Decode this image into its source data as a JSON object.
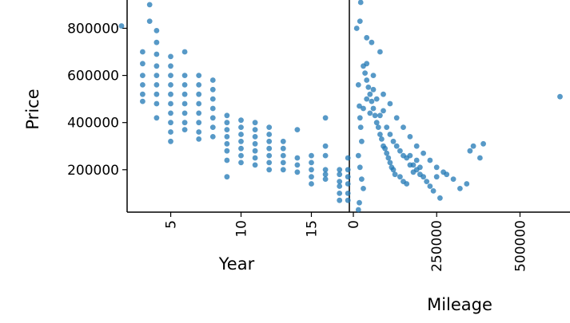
{
  "chart_data": {
    "type": "scatter",
    "panels": [
      {
        "name": "year-vs-price",
        "xlabel": "Year",
        "ylabel": "Price",
        "xticks": [
          5,
          10,
          15
        ],
        "yticks": [
          200000,
          400000,
          600000,
          800000
        ],
        "xlim": [
          1.9,
          17.7
        ],
        "ylim": [
          20000,
          920000
        ],
        "color": "#1f77b4",
        "points": [
          [
            1.5,
            810000
          ],
          [
            3.5,
            900000
          ],
          [
            3.5,
            830000
          ],
          [
            3,
            700000
          ],
          [
            3,
            650000
          ],
          [
            3,
            600000
          ],
          [
            3,
            560000
          ],
          [
            3,
            520000
          ],
          [
            3,
            490000
          ],
          [
            4,
            790000
          ],
          [
            4,
            740000
          ],
          [
            4,
            690000
          ],
          [
            4,
            640000
          ],
          [
            4,
            600000
          ],
          [
            4,
            560000
          ],
          [
            4,
            520000
          ],
          [
            4,
            480000
          ],
          [
            4,
            420000
          ],
          [
            5,
            680000
          ],
          [
            5,
            640000
          ],
          [
            5,
            600000
          ],
          [
            5,
            560000
          ],
          [
            5,
            520000
          ],
          [
            5,
            480000
          ],
          [
            5,
            440000
          ],
          [
            5,
            400000
          ],
          [
            5,
            360000
          ],
          [
            5,
            320000
          ],
          [
            6,
            700000
          ],
          [
            6,
            600000
          ],
          [
            6,
            560000
          ],
          [
            6,
            520000
          ],
          [
            6,
            480000
          ],
          [
            6,
            440000
          ],
          [
            6,
            400000
          ],
          [
            6,
            370000
          ],
          [
            7,
            600000
          ],
          [
            7,
            560000
          ],
          [
            7,
            520000
          ],
          [
            7,
            480000
          ],
          [
            7,
            440000
          ],
          [
            7,
            400000
          ],
          [
            7,
            360000
          ],
          [
            7,
            330000
          ],
          [
            8,
            580000
          ],
          [
            8,
            540000
          ],
          [
            8,
            500000
          ],
          [
            8,
            460000
          ],
          [
            8,
            420000
          ],
          [
            8,
            380000
          ],
          [
            8,
            340000
          ],
          [
            9,
            430000
          ],
          [
            9,
            400000
          ],
          [
            9,
            370000
          ],
          [
            9,
            340000
          ],
          [
            9,
            310000
          ],
          [
            9,
            280000
          ],
          [
            9,
            240000
          ],
          [
            9,
            170000
          ],
          [
            10,
            410000
          ],
          [
            10,
            380000
          ],
          [
            10,
            350000
          ],
          [
            10,
            320000
          ],
          [
            10,
            290000
          ],
          [
            10,
            260000
          ],
          [
            10,
            230000
          ],
          [
            11,
            400000
          ],
          [
            11,
            370000
          ],
          [
            11,
            340000
          ],
          [
            11,
            310000
          ],
          [
            11,
            280000
          ],
          [
            11,
            250000
          ],
          [
            11,
            220000
          ],
          [
            12,
            380000
          ],
          [
            12,
            350000
          ],
          [
            12,
            320000
          ],
          [
            12,
            290000
          ],
          [
            12,
            260000
          ],
          [
            12,
            230000
          ],
          [
            12,
            200000
          ],
          [
            13,
            320000
          ],
          [
            13,
            290000
          ],
          [
            13,
            260000
          ],
          [
            13,
            230000
          ],
          [
            13,
            200000
          ],
          [
            14,
            370000
          ],
          [
            14,
            250000
          ],
          [
            14,
            220000
          ],
          [
            14,
            190000
          ],
          [
            15,
            260000
          ],
          [
            15,
            230000
          ],
          [
            15,
            200000
          ],
          [
            15,
            170000
          ],
          [
            15,
            140000
          ],
          [
            16,
            420000
          ],
          [
            16,
            300000
          ],
          [
            16,
            260000
          ],
          [
            16,
            200000
          ],
          [
            16,
            180000
          ],
          [
            16,
            160000
          ],
          [
            17,
            200000
          ],
          [
            17,
            180000
          ],
          [
            17,
            150000
          ],
          [
            17,
            130000
          ],
          [
            17,
            100000
          ],
          [
            17,
            70000
          ],
          [
            17.6,
            250000
          ],
          [
            17.6,
            200000
          ],
          [
            17.6,
            170000
          ],
          [
            17.6,
            140000
          ],
          [
            17.6,
            100000
          ],
          [
            17.6,
            70000
          ]
        ]
      },
      {
        "name": "mileage-vs-price",
        "xlabel": "Mileage",
        "ylabel": "",
        "xticks": [
          0,
          250000,
          500000
        ],
        "yticks": [],
        "xlim": [
          -12000,
          650000
        ],
        "ylim": [
          20000,
          920000
        ],
        "color": "#1f77b4",
        "points": [
          [
            10000,
            800000
          ],
          [
            22000,
            910000
          ],
          [
            20000,
            830000
          ],
          [
            40000,
            760000
          ],
          [
            55000,
            740000
          ],
          [
            80000,
            700000
          ],
          [
            15000,
            560000
          ],
          [
            18000,
            470000
          ],
          [
            20000,
            420000
          ],
          [
            22000,
            380000
          ],
          [
            25000,
            320000
          ],
          [
            30000,
            640000
          ],
          [
            35000,
            610000
          ],
          [
            40000,
            580000
          ],
          [
            45000,
            550000
          ],
          [
            50000,
            520000
          ],
          [
            55000,
            490000
          ],
          [
            60000,
            460000
          ],
          [
            65000,
            430000
          ],
          [
            70000,
            400000
          ],
          [
            75000,
            380000
          ],
          [
            80000,
            350000
          ],
          [
            85000,
            330000
          ],
          [
            90000,
            300000
          ],
          [
            95000,
            290000
          ],
          [
            100000,
            270000
          ],
          [
            105000,
            250000
          ],
          [
            110000,
            230000
          ],
          [
            115000,
            210000
          ],
          [
            120000,
            200000
          ],
          [
            125000,
            180000
          ],
          [
            140000,
            170000
          ],
          [
            150000,
            150000
          ],
          [
            160000,
            140000
          ],
          [
            170000,
            260000
          ],
          [
            180000,
            220000
          ],
          [
            190000,
            200000
          ],
          [
            200000,
            180000
          ],
          [
            210000,
            170000
          ],
          [
            220000,
            150000
          ],
          [
            230000,
            130000
          ],
          [
            240000,
            110000
          ],
          [
            250000,
            170000
          ],
          [
            260000,
            80000
          ],
          [
            270000,
            190000
          ],
          [
            280000,
            180000
          ],
          [
            300000,
            160000
          ],
          [
            320000,
            120000
          ],
          [
            350000,
            280000
          ],
          [
            360000,
            300000
          ],
          [
            340000,
            140000
          ],
          [
            380000,
            250000
          ],
          [
            390000,
            310000
          ],
          [
            30000,
            460000
          ],
          [
            40000,
            500000
          ],
          [
            50000,
            440000
          ],
          [
            60000,
            540000
          ],
          [
            70000,
            500000
          ],
          [
            80000,
            430000
          ],
          [
            90000,
            450000
          ],
          [
            100000,
            380000
          ],
          [
            110000,
            350000
          ],
          [
            120000,
            320000
          ],
          [
            130000,
            300000
          ],
          [
            140000,
            280000
          ],
          [
            150000,
            260000
          ],
          [
            160000,
            250000
          ],
          [
            170000,
            220000
          ],
          [
            180000,
            190000
          ],
          [
            190000,
            240000
          ],
          [
            200000,
            210000
          ],
          [
            40000,
            650000
          ],
          [
            60000,
            600000
          ],
          [
            90000,
            520000
          ],
          [
            110000,
            480000
          ],
          [
            130000,
            420000
          ],
          [
            150000,
            380000
          ],
          [
            170000,
            340000
          ],
          [
            190000,
            300000
          ],
          [
            210000,
            270000
          ],
          [
            230000,
            240000
          ],
          [
            250000,
            210000
          ],
          [
            15000,
            260000
          ],
          [
            20000,
            210000
          ],
          [
            25000,
            160000
          ],
          [
            30000,
            120000
          ],
          [
            18000,
            60000
          ],
          [
            15000,
            30000
          ],
          [
            620000,
            510000
          ]
        ]
      }
    ]
  }
}
